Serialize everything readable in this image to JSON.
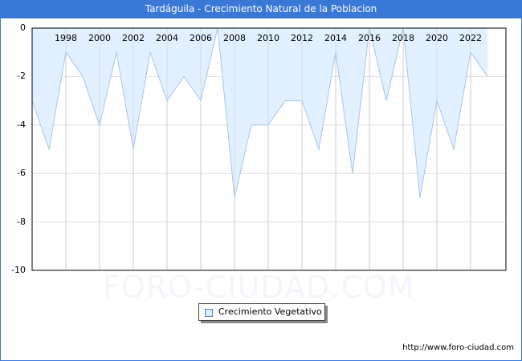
{
  "header": {
    "title": "Tardáguila - Crecimiento Natural de la Poblacion"
  },
  "watermark": "FORO-CIUDAD.COM",
  "footer": {
    "url": "http://www.foro-ciudad.com"
  },
  "legend": {
    "label": "Crecimiento Vegetativo"
  },
  "colors": {
    "title_bg": "#3a78d8",
    "fill": "#e1f0fe",
    "line": "#a8c4ec",
    "grid": "#dddddd"
  },
  "chart_data": {
    "type": "area",
    "title": "Tardáguila - Crecimiento Natural de la Poblacion",
    "xlabel": "",
    "ylabel": "",
    "ylim": [
      -10,
      0
    ],
    "yticks": [
      0,
      -2,
      -4,
      -6,
      -8,
      -10
    ],
    "xtick_labels": [
      "1998",
      "2000",
      "2002",
      "2004",
      "2006",
      "2008",
      "2010",
      "2012",
      "2014",
      "2016",
      "2018",
      "2020",
      "2022"
    ],
    "grid": true,
    "legend_position": "bottom",
    "x": [
      1996,
      1997,
      1998,
      1999,
      2000,
      2001,
      2002,
      2003,
      2004,
      2005,
      2006,
      2007,
      2008,
      2009,
      2010,
      2011,
      2012,
      2013,
      2014,
      2015,
      2016,
      2017,
      2018,
      2019,
      2020,
      2021,
      2022,
      2023
    ],
    "series": [
      {
        "name": "Crecimiento Vegetativo",
        "values": [
          -3,
          -5,
          -1,
          -2,
          -4,
          -1,
          -5,
          -1,
          -3,
          -2,
          -3,
          0,
          -7,
          -4,
          -4,
          -3,
          -3,
          -5,
          -1,
          -6,
          0,
          -3,
          0,
          -7,
          -3,
          -5,
          -1,
          -2
        ]
      }
    ]
  }
}
